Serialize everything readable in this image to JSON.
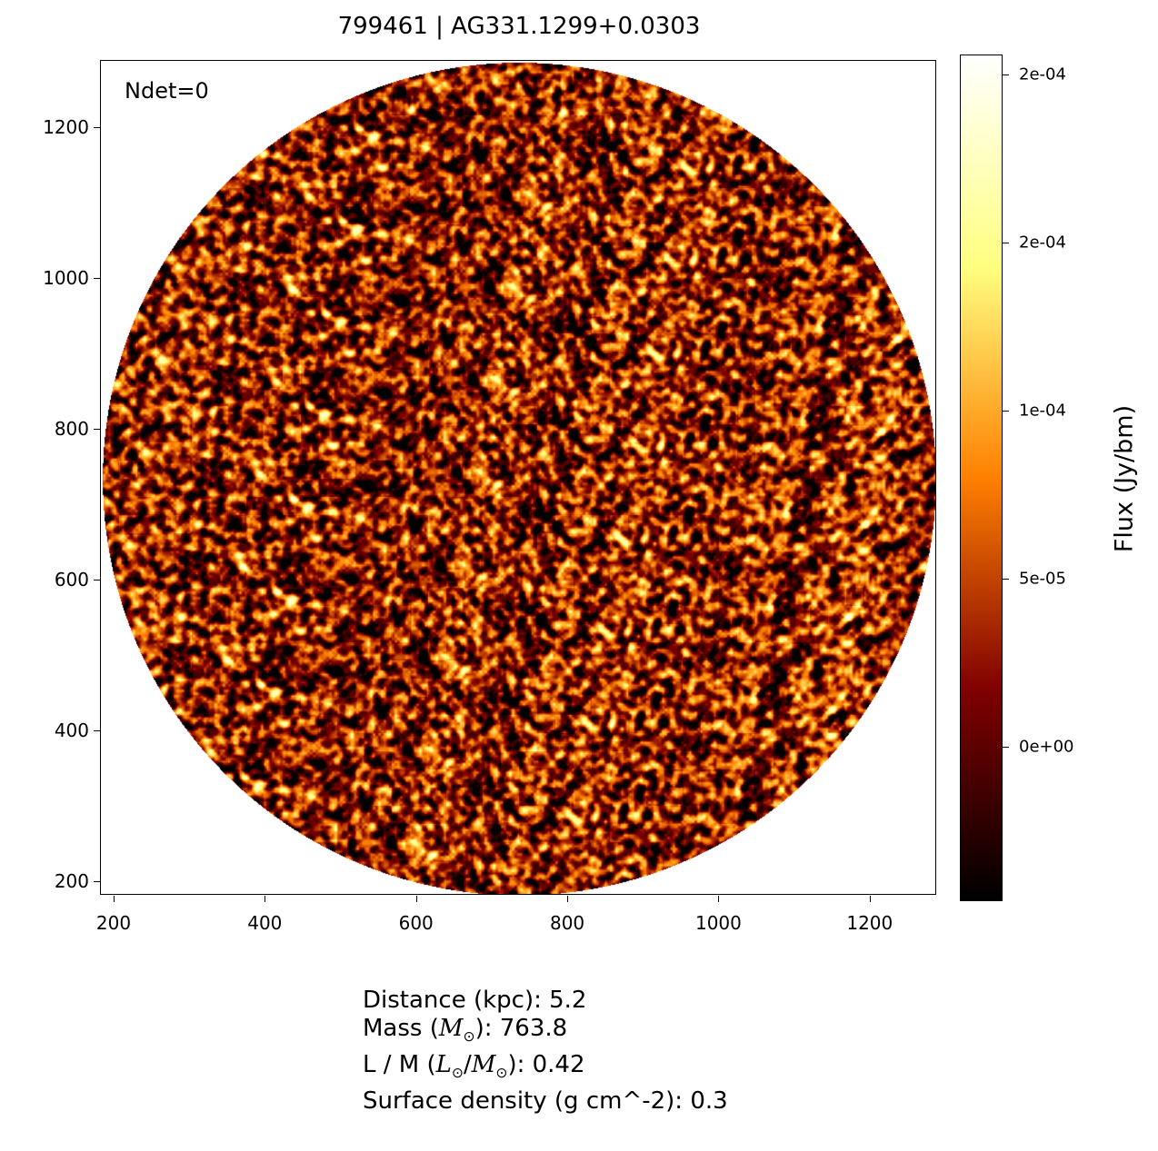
{
  "chart_data": {
    "type": "heatmap",
    "title": "799461 | AG331.1299+0.0303",
    "annotation": "Ndet=0",
    "xlim": [
      182,
      1288
    ],
    "ylim": [
      182,
      1289
    ],
    "x_ticks": [
      "200",
      "400",
      "600",
      "800",
      "1000",
      "1200"
    ],
    "x_tick_values": [
      200,
      400,
      600,
      800,
      1000,
      1200
    ],
    "y_ticks": [
      "200",
      "400",
      "600",
      "800",
      "1000",
      "1200"
    ],
    "y_tick_values": [
      200,
      400,
      600,
      800,
      1000,
      1200
    ],
    "colormap": "afmhot",
    "colorbar": {
      "label": "Flux (Jy/bm)",
      "range": [
        -4.6e-05,
        0.000206
      ],
      "ticks": [
        "0e+00",
        "5e-05",
        "1e-04",
        "2e-04",
        "2e-04"
      ],
      "tick_values": [
        0,
        5e-05,
        0.0001,
        0.00015,
        0.0002
      ]
    },
    "image_shape": "circular field of noise",
    "field_center": [
      735,
      735
    ],
    "field_radius": 551
  },
  "info": {
    "distance": "Distance (kpc): 5.2",
    "mass_prefix": "Mass (",
    "mass_sym": "M",
    "mass_suffix": "): 763.8",
    "lm_prefix": "L / M (",
    "lm_l": "L",
    "lm_m": "M",
    "lm_suffix": "): 0.42",
    "sun": "⊙",
    "surface": "Surface density (g cm^-2): 0.3"
  }
}
